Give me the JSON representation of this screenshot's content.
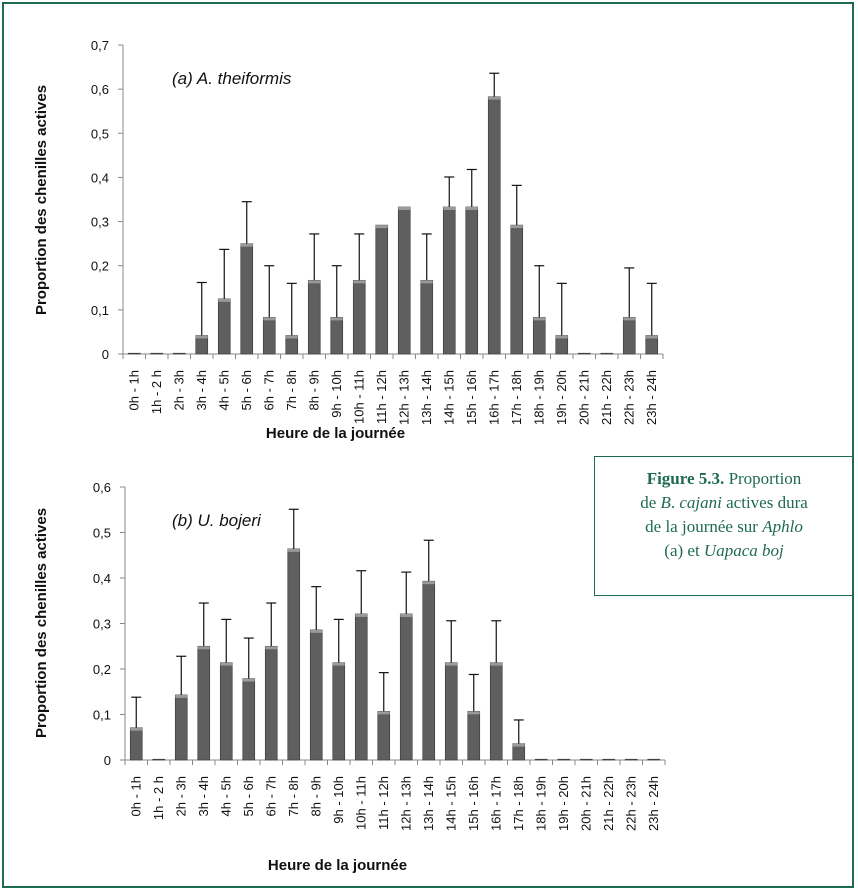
{
  "chart_data": [
    {
      "type": "bar",
      "title": "(a) A. theiformis",
      "xlabel": "Heure de la journée",
      "ylabel": "Proportion des chenilles actives",
      "ylim": [
        0,
        0.7
      ],
      "yticks": [
        "0",
        "0,1",
        "0,2",
        "0,3",
        "0,4",
        "0,5",
        "0,6",
        "0,7"
      ],
      "categories": [
        "0h - 1h",
        "1h - 2 h",
        "2h - 3h",
        "3h - 4h",
        "4h - 5h",
        "5h - 6h",
        "6h - 7h",
        "7h - 8h",
        "8h - 9h",
        "9h - 10h",
        "10h - 11h",
        "11h - 12h",
        "12h - 13h",
        "13h - 14h",
        "14h - 15h",
        "15h - 16h",
        "16h - 17h",
        "17h - 18h",
        "18h - 19h",
        "19h - 20h",
        "20h - 21h",
        "21h - 22h",
        "22h - 23h",
        "23h - 24h"
      ],
      "values": [
        0,
        0,
        0,
        0.042,
        0.125,
        0.25,
        0.083,
        0.042,
        0.167,
        0.083,
        0.167,
        0.292,
        0.333,
        0.167,
        0.333,
        0.333,
        0.583,
        0.292,
        0.083,
        0.042,
        0,
        0,
        0.083,
        0.042
      ],
      "errors": [
        0,
        0,
        0,
        0.12,
        0.112,
        0.095,
        0.117,
        0.118,
        0.105,
        0.117,
        0.105,
        0,
        0,
        0.105,
        0.068,
        0.085,
        0.053,
        0.09,
        0.117,
        0.118,
        0,
        0,
        0.112,
        0.118
      ]
    },
    {
      "type": "bar",
      "title": "(b) U. bojeri",
      "xlabel": "Heure de la journée",
      "ylabel": "Proportion des chenilles actives",
      "ylim": [
        0,
        0.6
      ],
      "yticks": [
        "0",
        "0,1",
        "0,2",
        "0,3",
        "0,4",
        "0,5",
        "0,6"
      ],
      "categories": [
        "0h - 1h",
        "1h - 2 h",
        "2h - 3h",
        "3h - 4h",
        "4h - 5h",
        "5h - 6h",
        "6h - 7h",
        "7h - 8h",
        "8h - 9h",
        "9h - 10h",
        "10h - 11h",
        "11h - 12h",
        "12h - 13h",
        "13h - 14h",
        "14h - 15h",
        "15h - 16h",
        "16h - 17h",
        "17h - 18h",
        "18h - 19h",
        "19h - 20h",
        "20h - 21h",
        "21h - 22h",
        "22h - 23h",
        "23h - 24h"
      ],
      "values": [
        0.071,
        0,
        0.143,
        0.25,
        0.214,
        0.179,
        0.25,
        0.464,
        0.286,
        0.214,
        0.321,
        0.107,
        0.321,
        0.393,
        0.214,
        0.107,
        0.214,
        0.036,
        0,
        0,
        0,
        0,
        0,
        0
      ],
      "errors": [
        0.067,
        0,
        0.085,
        0.095,
        0.095,
        0.089,
        0.095,
        0.087,
        0.095,
        0.095,
        0.095,
        0.085,
        0.092,
        0.09,
        0.092,
        0.081,
        0.092,
        0.052,
        0,
        0,
        0,
        0,
        0,
        0
      ]
    }
  ],
  "style": {
    "bar_color": "#5f5f5f",
    "frame_color": "#1f6b4e",
    "caption_color": "#1f6b4e"
  },
  "caption": {
    "line1_bold": "Figure 5.3.",
    "line1_rest": " Proportion",
    "line2_a": "de ",
    "line2_b": "B",
    "line2_c": ". ",
    "line2_d": "cajani",
    "line2_e": " actives dura",
    "line3_a": "de la journée sur ",
    "line3_b": "Aphlo",
    "line4_a": "(a) et ",
    "line4_b": "Uapaca boj"
  }
}
